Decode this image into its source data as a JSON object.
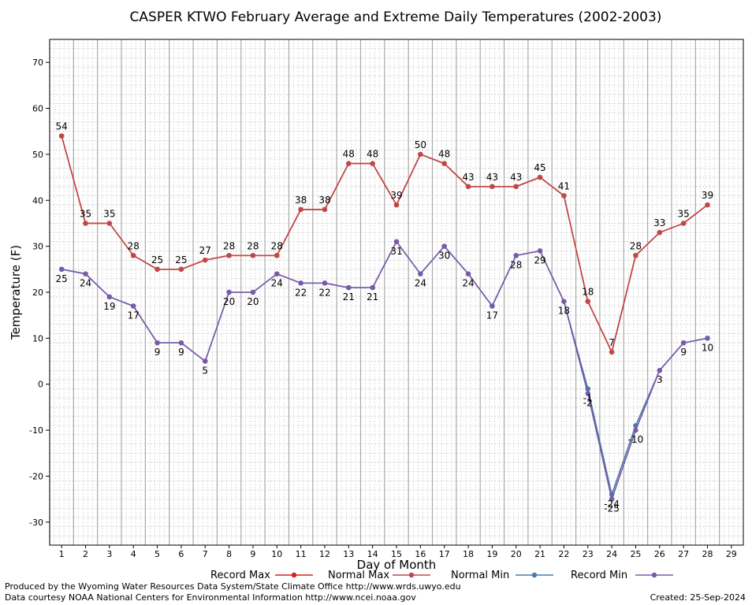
{
  "chart_data": {
    "type": "line",
    "title": "CASPER KTWO February Average and Extreme Daily Temperatures (2002-2003)",
    "xlabel": "Day of Month",
    "ylabel": "Temperature (F)",
    "xlim": [
      0.5,
      29.5
    ],
    "ylim": [
      -35,
      75
    ],
    "y_ticks": [
      -30,
      -20,
      -10,
      0,
      10,
      20,
      30,
      40,
      50,
      60,
      70
    ],
    "x_ticks": [
      1,
      2,
      3,
      4,
      5,
      6,
      7,
      8,
      9,
      10,
      11,
      12,
      13,
      14,
      15,
      16,
      17,
      18,
      19,
      20,
      21,
      22,
      23,
      24,
      25,
      26,
      27,
      28,
      29
    ],
    "grid": true,
    "legend_position": "bottom",
    "x": [
      1,
      2,
      3,
      4,
      5,
      6,
      7,
      8,
      9,
      10,
      11,
      12,
      13,
      14,
      15,
      16,
      17,
      18,
      19,
      20,
      21,
      22,
      23,
      24,
      25,
      26,
      27,
      28
    ],
    "series": [
      {
        "name": "Record Max",
        "color": "#d62020",
        "values": [
          54,
          35,
          35,
          28,
          25,
          25,
          27,
          28,
          28,
          28,
          38,
          38,
          48,
          48,
          39,
          50,
          48,
          43,
          43,
          43,
          45,
          41,
          18,
          7,
          28,
          33,
          35,
          39
        ],
        "show_labels": false
      },
      {
        "name": "Normal Max",
        "color": "#c04848",
        "values": [
          54,
          35,
          35,
          28,
          25,
          25,
          27,
          28,
          28,
          28,
          38,
          38,
          48,
          48,
          39,
          50,
          48,
          43,
          43,
          43,
          45,
          41,
          18,
          7,
          28,
          33,
          35,
          39
        ],
        "show_labels": true
      },
      {
        "name": "Normal Min",
        "color": "#4a7aa8",
        "values": [
          25,
          24,
          19,
          17,
          9,
          9,
          5,
          20,
          20,
          24,
          22,
          22,
          21,
          21,
          31,
          24,
          30,
          24,
          17,
          28,
          29,
          18,
          -1,
          -24,
          -9,
          3,
          9,
          10
        ],
        "show_labels": false
      },
      {
        "name": "Record Min",
        "color": "#7a5aa8",
        "values": [
          25,
          24,
          19,
          17,
          9,
          9,
          5,
          20,
          20,
          24,
          22,
          22,
          21,
          21,
          31,
          24,
          30,
          24,
          17,
          28,
          29,
          18,
          -2,
          -25,
          -10,
          3,
          9,
          10
        ],
        "show_labels": true
      }
    ],
    "extra_labels": [
      {
        "text": "-1",
        "x": 23,
        "y": -1
      },
      {
        "text": "-24",
        "x": 24,
        "y": -24
      }
    ]
  },
  "footer": {
    "produced_by": "Produced by the Wyoming Water Resources Data System/State Climate Office http://www.wrds.uwyo.edu",
    "courtesy": "Data courtesy NOAA National Centers for Environmental Information http://www.ncei.noaa.gov",
    "created": "Created:  25-Sep-2024"
  }
}
